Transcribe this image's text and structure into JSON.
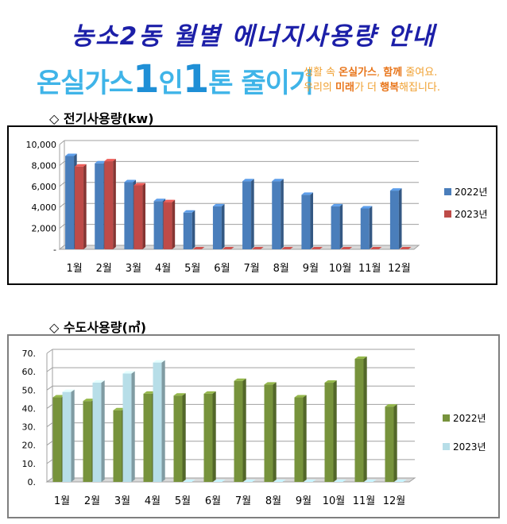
{
  "title": "농소2동 월별 에너지사용량 안내",
  "banner": {
    "main_a": "온실가스",
    "main_b": "1",
    "main_c": "인",
    "main_d": "1",
    "main_e": "톤 줄이기",
    "slogan_line1_a": "생활 속 ",
    "slogan_line1_b": "온실가스",
    "slogan_line1_c": ", ",
    "slogan_line1_d": "함께",
    "slogan_line1_e": " 줄여요.",
    "slogan_line2_a": "우리의 ",
    "slogan_line2_b": "미래",
    "slogan_line2_c": "가 더 ",
    "slogan_line2_d": "행복",
    "slogan_line2_e": "해집니다."
  },
  "sections": {
    "electric_title": "◇ 전기사용량(kw)",
    "water_title": "◇ 수도사용량(㎥)"
  },
  "chart_data": [
    {
      "type": "bar",
      "categories": [
        "1월",
        "2월",
        "3월",
        "4월",
        "5월",
        "6월",
        "7월",
        "8월",
        "9월",
        "10월",
        "11월",
        "12월"
      ],
      "series": [
        {
          "name": "2022년",
          "values": [
            8900,
            8200,
            6400,
            4600,
            3500,
            4100,
            6500,
            6500,
            5200,
            4100,
            3900,
            5600
          ],
          "color": "#4a7ebb"
        },
        {
          "name": "2023년",
          "values": [
            7900,
            8400,
            6100,
            4500,
            0,
            0,
            0,
            0,
            0,
            0,
            0,
            0
          ],
          "color": "#be4b48"
        }
      ],
      "ylim": [
        0,
        10000
      ],
      "yticks": [
        "-",
        "2,000",
        "4,000",
        "6,000",
        "8,000",
        "10,000"
      ],
      "grid": true,
      "legend": "right"
    },
    {
      "type": "bar",
      "categories": [
        "1월",
        "2월",
        "3월",
        "4월",
        "5월",
        "6월",
        "7월",
        "8월",
        "9월",
        "10월",
        "11월",
        "12월"
      ],
      "series": [
        {
          "name": "2022년",
          "values": [
            46,
            44,
            39,
            48,
            47,
            48,
            55,
            53,
            46,
            54,
            67,
            41
          ],
          "color": "#77933c"
        },
        {
          "name": "2023년",
          "values": [
            49,
            54,
            59,
            65,
            0,
            0,
            0,
            0,
            0,
            0,
            0,
            0
          ],
          "color": "#b7dee8"
        }
      ],
      "ylim": [
        0,
        70
      ],
      "yticks": [
        "0.",
        "10.",
        "20.",
        "30.",
        "40.",
        "50.",
        "60.",
        "70."
      ],
      "grid": true,
      "legend": "right"
    }
  ]
}
